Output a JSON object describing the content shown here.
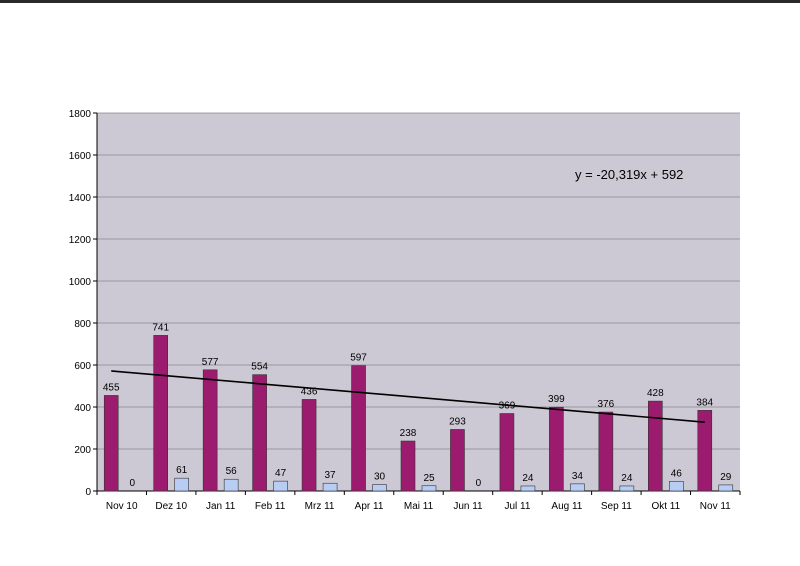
{
  "chart_data": {
    "type": "bar",
    "categories": [
      "Nov 10",
      "Dez 10",
      "Jan 11",
      "Feb 11",
      "Mrz 11",
      "Apr 11",
      "Mai 11",
      "Jun 11",
      "Jul 11",
      "Aug 11",
      "Sep 11",
      "Okt 11",
      "Nov 11"
    ],
    "series": [
      {
        "values": [
          455,
          741,
          577,
          554,
          436,
          597,
          238,
          293,
          369,
          399,
          376,
          428,
          384
        ],
        "color": "#9b1c6e"
      },
      {
        "values": [
          0,
          61,
          56,
          47,
          37,
          30,
          25,
          0,
          24,
          34,
          24,
          46,
          29
        ],
        "color": "#b7cdf4"
      }
    ],
    "trendline": {
      "equation": "y = -20,319x + 592",
      "slope": -20.319,
      "intercept": 592,
      "series_index": 0,
      "color": "#000000"
    },
    "ylim": [
      0,
      1800
    ],
    "yticks": [
      0,
      200,
      400,
      600,
      800,
      1000,
      1200,
      1400,
      1600,
      1800
    ],
    "grid": true,
    "legend": "none",
    "plot_background": "#cdc9d4",
    "title": "",
    "xlabel": "",
    "ylabel": ""
  }
}
